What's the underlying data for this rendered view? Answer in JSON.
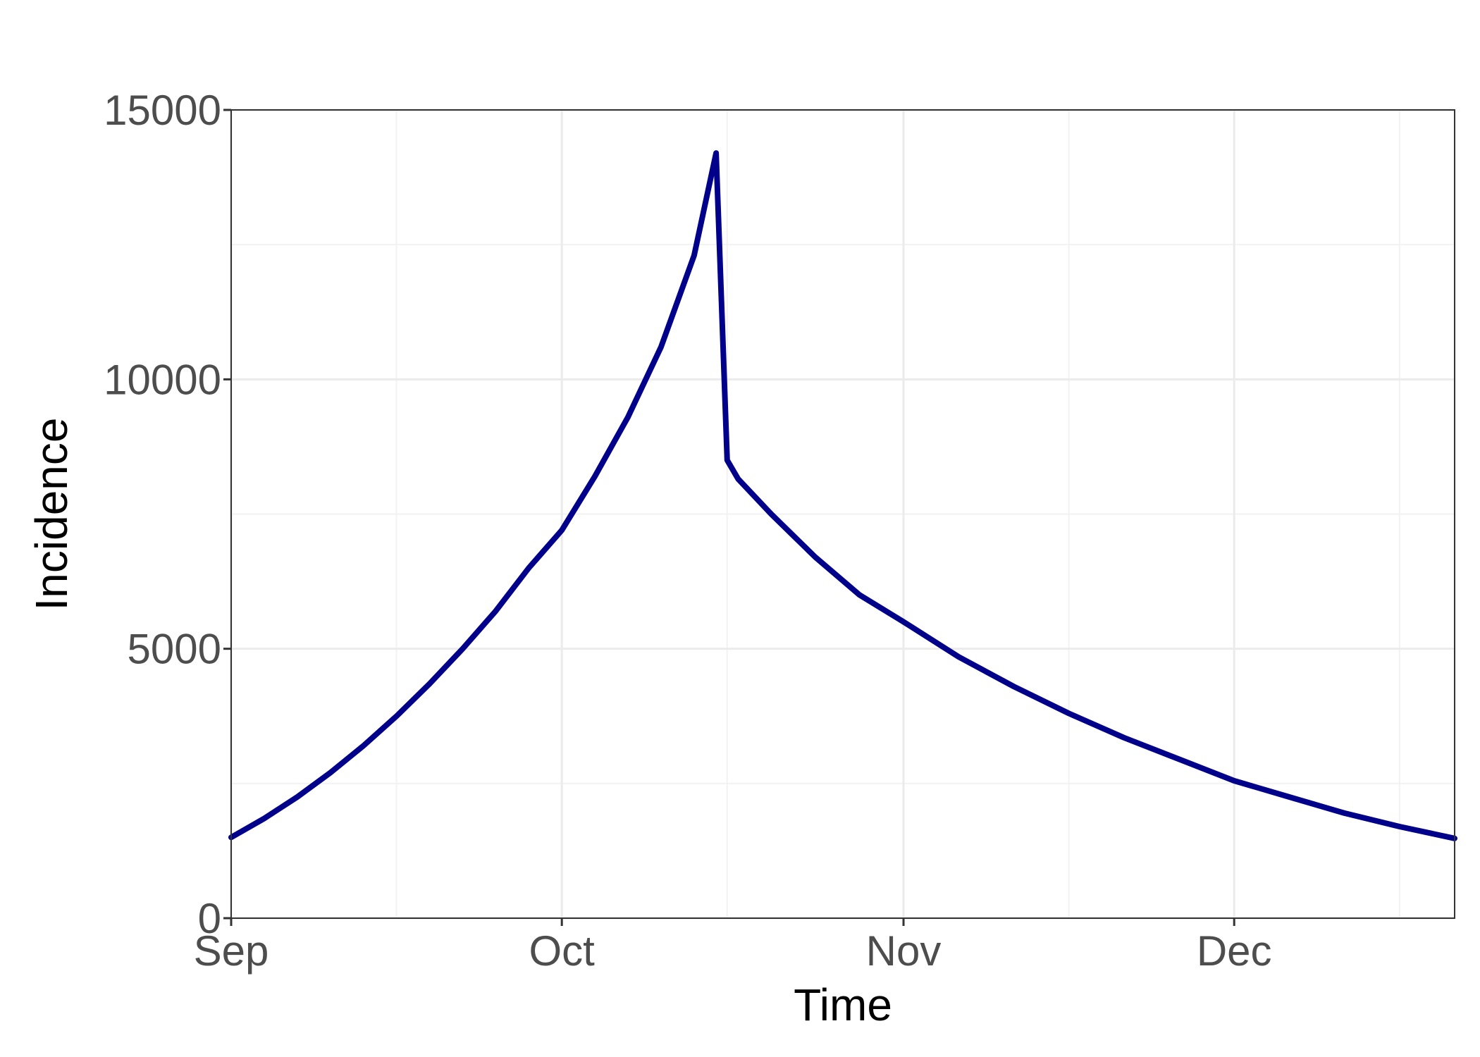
{
  "chart_data": {
    "type": "line",
    "xlabel": "Time",
    "ylabel": "Incidence",
    "x_axis": {
      "type": "date",
      "range": [
        "2020-09-01",
        "2020-12-21"
      ],
      "tick_dates": [
        "2020-09-01",
        "2020-10-01",
        "2020-11-01",
        "2020-12-01"
      ],
      "tick_labels": [
        "Sep",
        "Oct",
        "Nov",
        "Dec"
      ],
      "minor_grid_dates": [
        "2020-09-16",
        "2020-10-16",
        "2020-11-16",
        "2020-12-16"
      ]
    },
    "y_axis": {
      "range": [
        0,
        15000
      ],
      "ticks": [
        0,
        5000,
        10000,
        15000
      ],
      "tick_labels": [
        "0",
        "5000",
        "10000",
        "15000"
      ],
      "minor_grid": [
        2500,
        7500,
        12500
      ]
    },
    "grid": true,
    "legend": "none",
    "series": [
      {
        "color": "#00008b",
        "points": [
          {
            "x": "2020-09-01",
            "y": 1500
          },
          {
            "x": "2020-09-04",
            "y": 1850
          },
          {
            "x": "2020-09-07",
            "y": 2250
          },
          {
            "x": "2020-09-10",
            "y": 2700
          },
          {
            "x": "2020-09-13",
            "y": 3200
          },
          {
            "x": "2020-09-16",
            "y": 3750
          },
          {
            "x": "2020-09-19",
            "y": 4350
          },
          {
            "x": "2020-09-22",
            "y": 5000
          },
          {
            "x": "2020-09-25",
            "y": 5700
          },
          {
            "x": "2020-09-28",
            "y": 6500
          },
          {
            "x": "2020-10-01",
            "y": 7200
          },
          {
            "x": "2020-10-04",
            "y": 8200
          },
          {
            "x": "2020-10-07",
            "y": 9300
          },
          {
            "x": "2020-10-10",
            "y": 10600
          },
          {
            "x": "2020-10-13",
            "y": 12300
          },
          {
            "x": "2020-10-15",
            "y": 14200
          },
          {
            "x": "2020-10-16",
            "y": 8500
          },
          {
            "x": "2020-10-17",
            "y": 8150
          },
          {
            "x": "2020-10-20",
            "y": 7500
          },
          {
            "x": "2020-10-24",
            "y": 6700
          },
          {
            "x": "2020-10-28",
            "y": 6000
          },
          {
            "x": "2020-11-01",
            "y": 5500
          },
          {
            "x": "2020-11-06",
            "y": 4850
          },
          {
            "x": "2020-11-11",
            "y": 4300
          },
          {
            "x": "2020-11-16",
            "y": 3800
          },
          {
            "x": "2020-11-21",
            "y": 3350
          },
          {
            "x": "2020-11-26",
            "y": 2950
          },
          {
            "x": "2020-12-01",
            "y": 2550
          },
          {
            "x": "2020-12-06",
            "y": 2250
          },
          {
            "x": "2020-12-11",
            "y": 1950
          },
          {
            "x": "2020-12-16",
            "y": 1700
          },
          {
            "x": "2020-12-21",
            "y": 1480
          }
        ]
      }
    ]
  }
}
